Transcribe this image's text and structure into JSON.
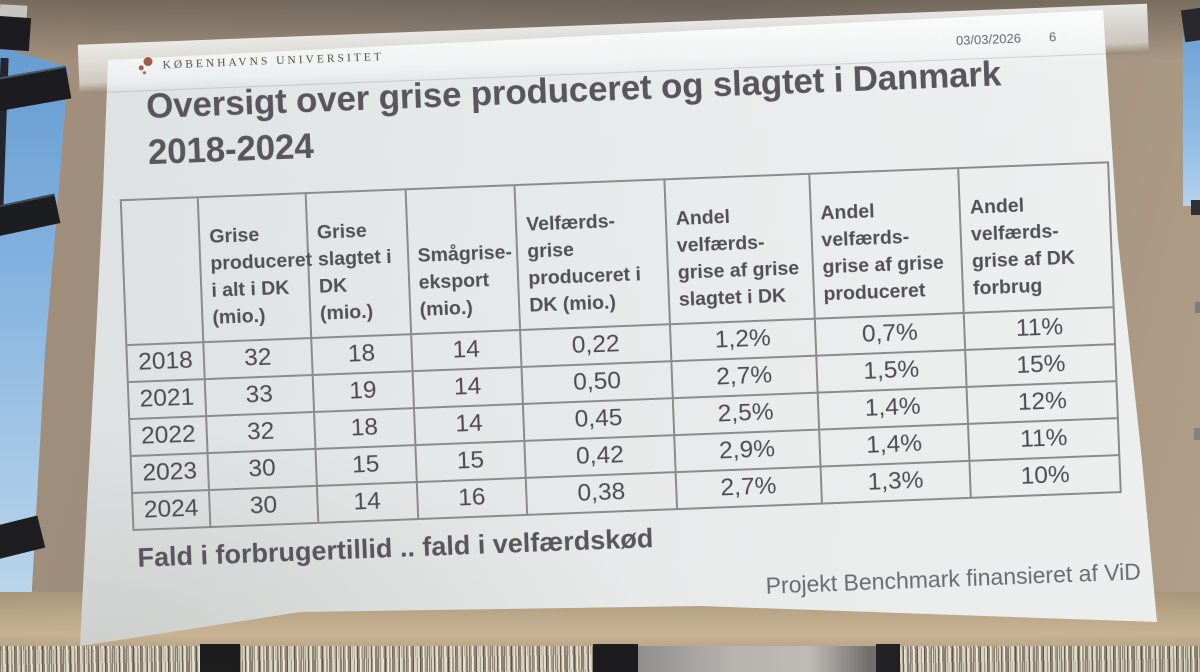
{
  "slide": {
    "date": "03/03/2026",
    "slide_number": "6",
    "university": "KØBENHAVNS UNIVERSITET",
    "title": {
      "line1": "Oversigt over grise produceret og slagtet i Danmark",
      "line2": "2018-2024"
    },
    "statement": "Fald i forbrugertillid .. fald i velfærdskød",
    "footer": "Projekt Benchmark finansieret af ViD"
  },
  "chart_data": {
    "type": "table",
    "title": "Oversigt over grise produceret og slagtet i Danmark 2018-2024",
    "columns": [
      "",
      "Grise\nproduceret\ni alt i DK\n(mio.)",
      "Grise\nslagtet i\nDK (mio.)",
      "Smågrise-\neksport\n(mio.)",
      "Velfærds-\ngrise\nproduceret i\nDK (mio.)",
      "Andel\nvelfærds-\ngrise af grise\nslagtet i DK",
      "Andel\nvelfærds-\ngrise af grise\nproduceret",
      "Andel\nvelfærds-\ngrise af DK\nforbrug"
    ],
    "rows": [
      [
        "2018",
        "32",
        "18",
        "14",
        "0,22",
        "1,2%",
        "0,7%",
        "11%"
      ],
      [
        "2021",
        "33",
        "19",
        "14",
        "0,50",
        "2,7%",
        "1,5%",
        "15%"
      ],
      [
        "2022",
        "32",
        "18",
        "14",
        "0,45",
        "2,5%",
        "1,4%",
        "12%"
      ],
      [
        "2023",
        "30",
        "15",
        "15",
        "0,42",
        "2,9%",
        "1,4%",
        "11%"
      ],
      [
        "2024",
        "30",
        "14",
        "16",
        "0,38",
        "2,7%",
        "1,3%",
        "10%"
      ]
    ]
  },
  "colors": {
    "slide_background": "#e7ebec",
    "text_dark": "#4e4d53",
    "table_border": "#8b8b8b",
    "wall_taupe": "#a3907b",
    "sky_blue": "#7fb2e2",
    "logo_seal_red": "#9c5b42",
    "floor_tan": "#c0ac8c"
  }
}
